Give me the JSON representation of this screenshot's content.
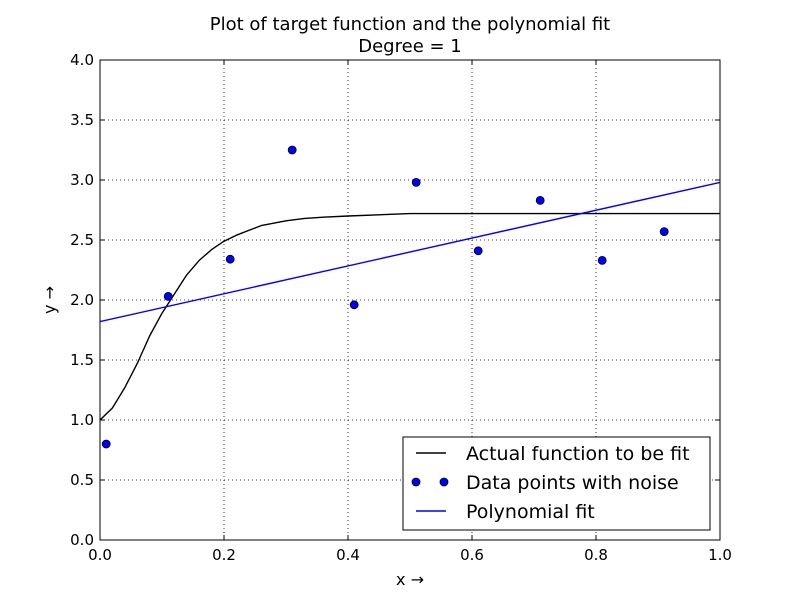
{
  "chart_data": {
    "type": "line",
    "title": "Plot of target function and the polynomial fit",
    "subtitle": "Degree = 1",
    "xlabel": "x →",
    "ylabel": "y →",
    "xlim": [
      0.0,
      1.0
    ],
    "ylim": [
      0.0,
      4.0
    ],
    "x_ticks": [
      "0.0",
      "0.2",
      "0.4",
      "0.6",
      "0.8",
      "1.0"
    ],
    "y_ticks": [
      "0.0",
      "0.5",
      "1.0",
      "1.5",
      "2.0",
      "2.5",
      "3.0",
      "3.5",
      "4.0"
    ],
    "grid": true,
    "legend_position": "bottom-right",
    "series": [
      {
        "name": "Actual function to be fit",
        "style": "line",
        "color": "#000000",
        "x": [
          0.0,
          0.02,
          0.04,
          0.06,
          0.08,
          0.1,
          0.12,
          0.14,
          0.16,
          0.18,
          0.2,
          0.22,
          0.24,
          0.26,
          0.28,
          0.3,
          0.33,
          0.36,
          0.4,
          0.45,
          0.5,
          0.6,
          0.7,
          0.8,
          0.9,
          1.0
        ],
        "y": [
          1.0,
          1.1,
          1.27,
          1.47,
          1.7,
          1.89,
          2.05,
          2.21,
          2.33,
          2.42,
          2.49,
          2.54,
          2.58,
          2.62,
          2.64,
          2.66,
          2.68,
          2.69,
          2.7,
          2.71,
          2.72,
          2.72,
          2.72,
          2.72,
          2.72,
          2.72
        ]
      },
      {
        "name": "Data points with noise",
        "style": "markers",
        "color": "#0000ff",
        "x": [
          0.01,
          0.11,
          0.21,
          0.31,
          0.41,
          0.51,
          0.61,
          0.71,
          0.81,
          0.91
        ],
        "y": [
          0.8,
          2.03,
          2.34,
          3.25,
          1.96,
          2.98,
          2.41,
          2.83,
          2.33,
          2.57
        ]
      },
      {
        "name": "Polynomial fit",
        "style": "line",
        "color": "#0000ff",
        "x": [
          0.0,
          1.0
        ],
        "y": [
          1.82,
          2.98
        ]
      }
    ]
  }
}
